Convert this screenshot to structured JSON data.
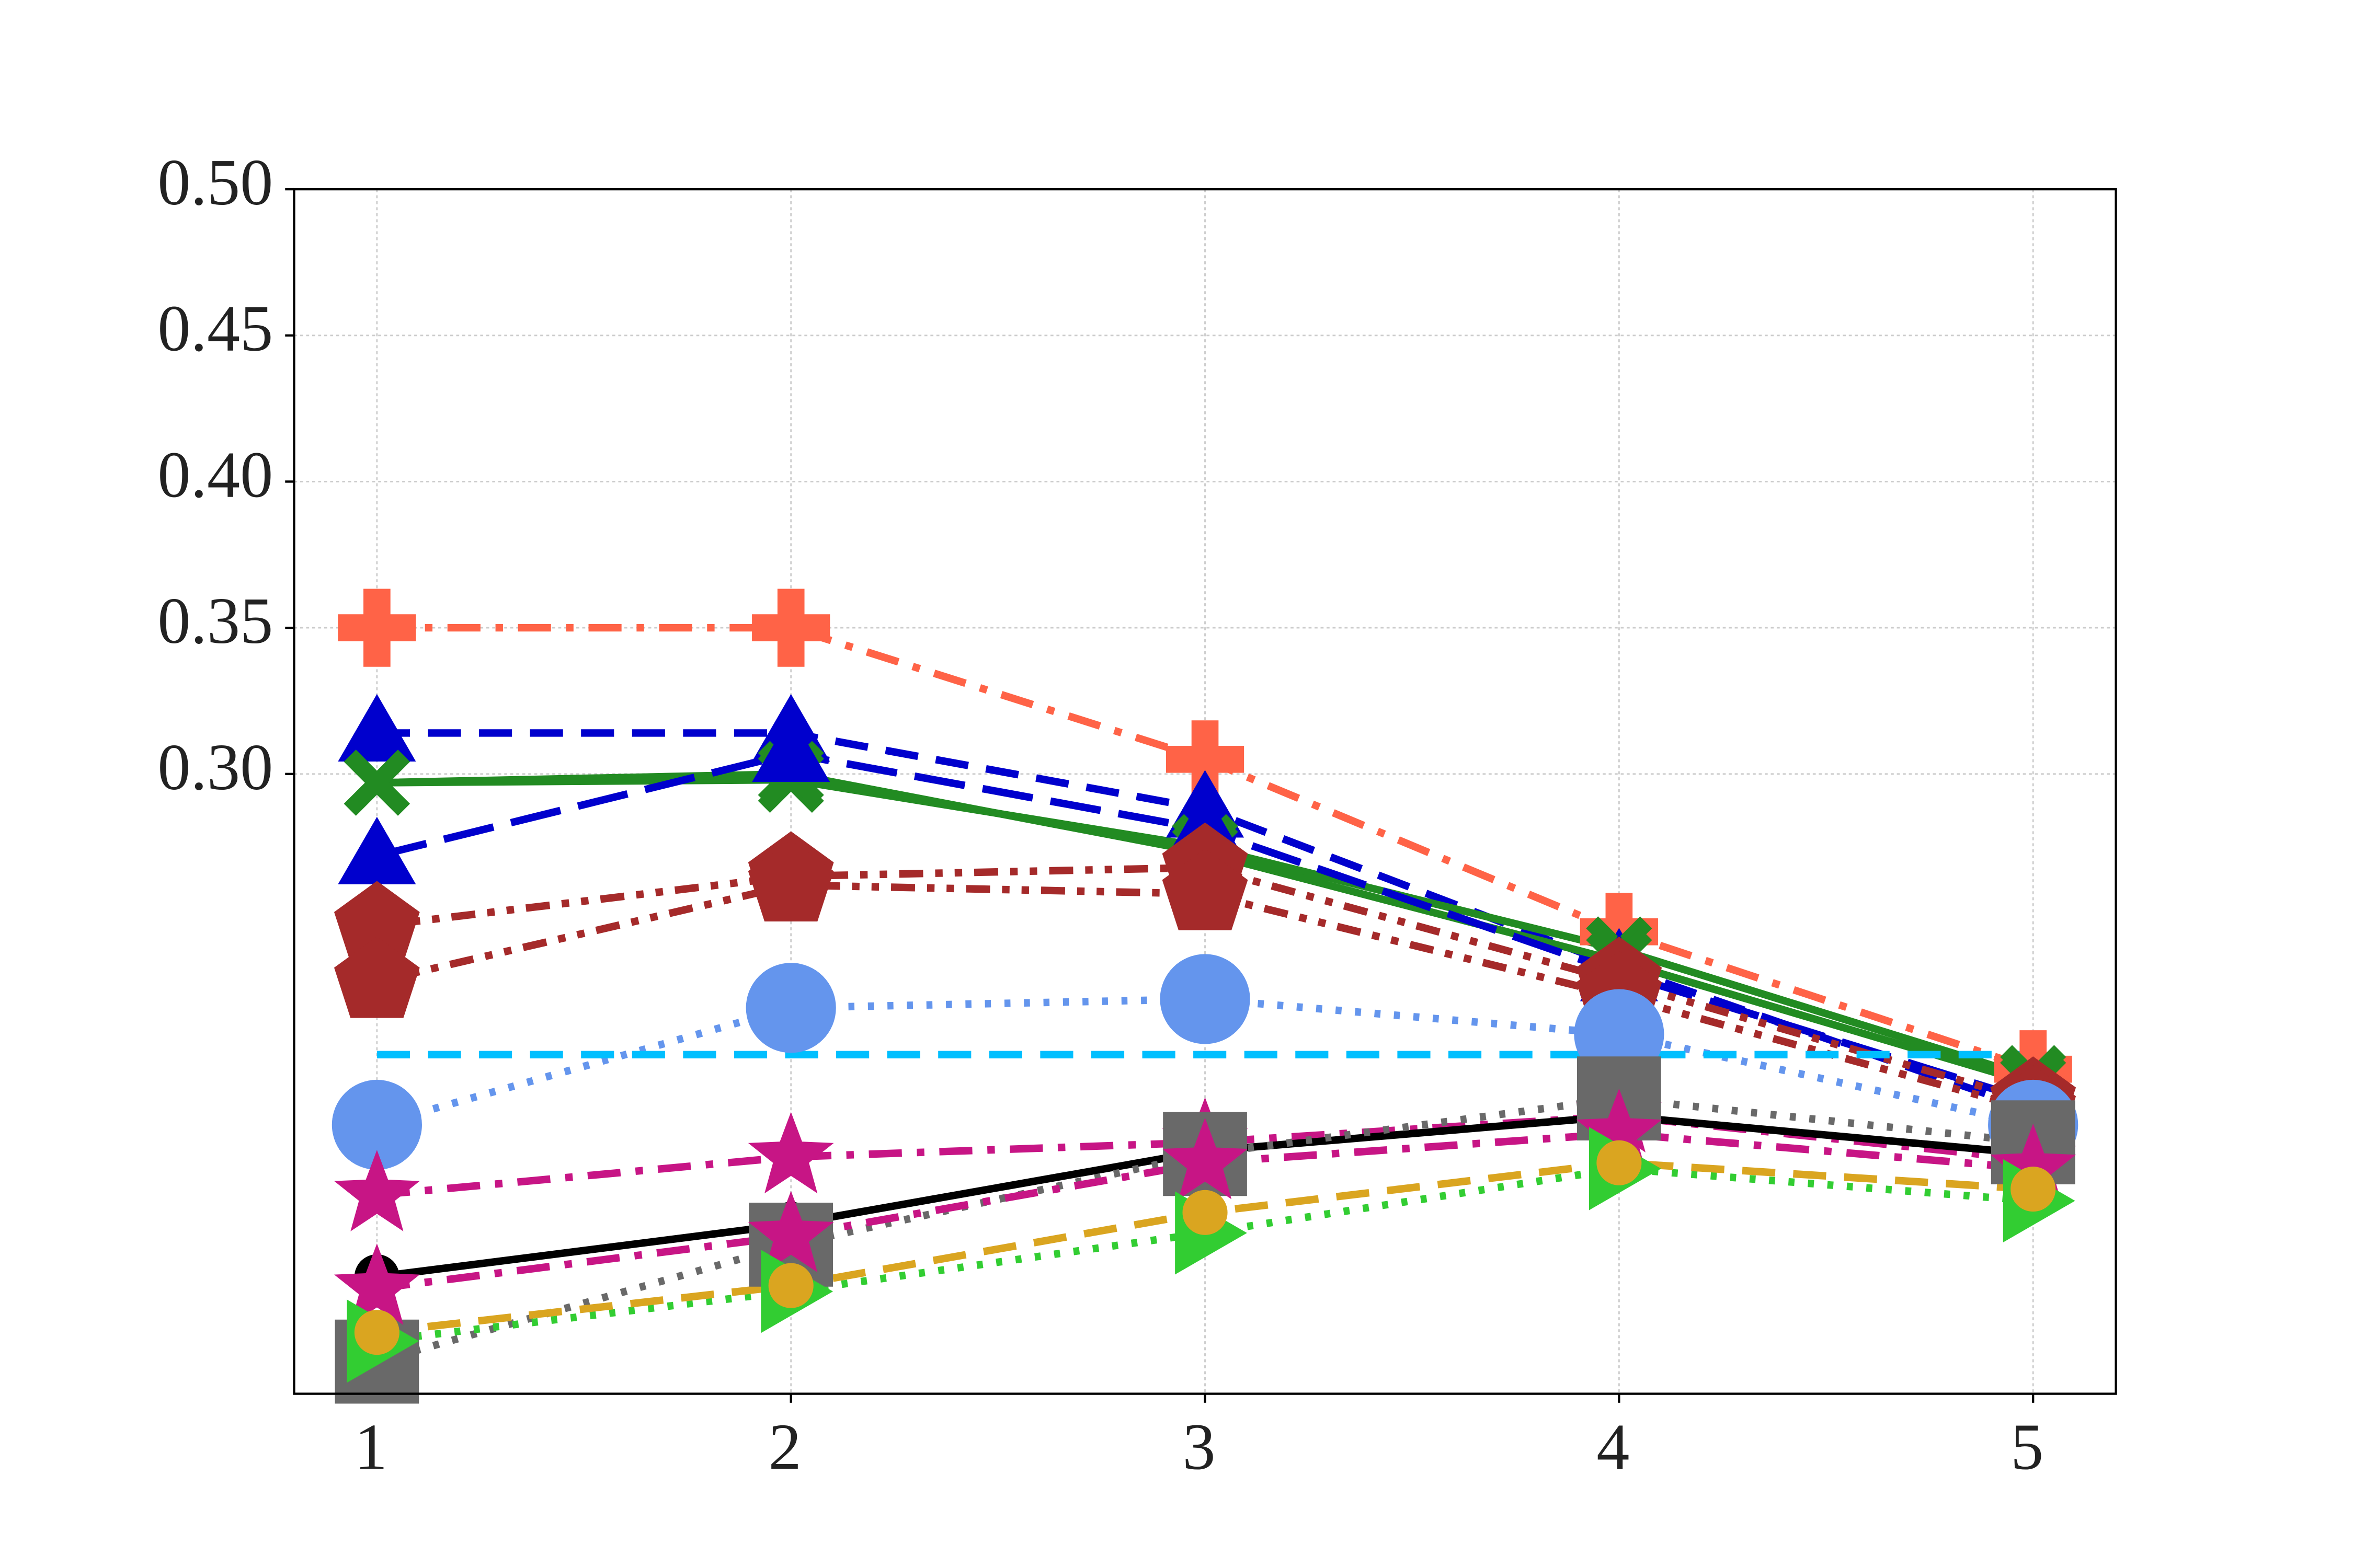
{
  "chart_data": {
    "type": "line",
    "x": [
      1,
      2,
      3,
      4,
      5
    ],
    "xlim": [
      0.8,
      5.2
    ],
    "xticks": [
      1,
      2,
      3,
      4,
      5
    ],
    "ylim": [
      0.088,
      0.5
    ],
    "yticks": [
      {
        "value": 0.3,
        "label": "0.30"
      },
      0.35,
      {
        "value": 0.4,
        "label": "0.40"
      },
      0.45,
      {
        "value": 0.5,
        "label": "0.50"
      }
    ],
    "grid": true,
    "series": [
      {
        "color": "#ff6347",
        "dash": "dashdot",
        "marker": "plus",
        "values": [
          0.35,
          0.35,
          0.305,
          0.246,
          0.199
        ]
      },
      {
        "color": "#0000cd",
        "dash": "dashed",
        "marker": "triangle",
        "values": [
          0.314,
          0.314,
          0.288,
          0.234,
          0.185
        ]
      },
      {
        "color": "#228b22",
        "dash": "solid",
        "marker": "x",
        "values": [
          0.297,
          0.298,
          0.275,
          0.24,
          0.196
        ]
      },
      {
        "color": "#228b22",
        "dash": "solid",
        "marker": "x",
        "values": [
          0.297,
          0.3,
          0.273,
          0.236,
          0.194
        ]
      },
      {
        "color": "#0000cd",
        "dash": "longdash",
        "marker": "triangle",
        "values": [
          0.272,
          0.307,
          0.281,
          0.232,
          0.188
        ]
      },
      {
        "color": "#a52a2a",
        "dash": "dashdotdot",
        "marker": "pentagon",
        "values": [
          0.248,
          0.265,
          0.268,
          0.229,
          0.188
        ]
      },
      {
        "color": "#a52a2a",
        "dash": "dashdotdot",
        "marker": "pentagon",
        "values": [
          0.229,
          0.262,
          0.259,
          0.224,
          0.185
        ]
      },
      {
        "color": "#6495ed",
        "dash": "dotted",
        "marker": "circle",
        "values": [
          0.18,
          0.22,
          0.223,
          0.211,
          0.18
        ]
      },
      {
        "color": "#00bfff",
        "dash": "dashed",
        "marker": "none",
        "values": [
          0.204,
          0.204,
          0.204,
          0.204,
          0.204
        ]
      },
      {
        "color": "#c71585",
        "dash": "dashdot",
        "marker": "star",
        "values": [
          0.156,
          0.169,
          0.174,
          0.183,
          0.168
        ]
      },
      {
        "color": "#000000",
        "dash": "solid",
        "marker": "circle-small",
        "values": [
          0.128,
          0.146,
          0.171,
          0.183,
          0.17
        ]
      },
      {
        "color": "#696969",
        "dash": "dotted",
        "marker": "square",
        "values": [
          0.099,
          0.139,
          0.17,
          0.189,
          0.174
        ]
      },
      {
        "color": "#c71585",
        "dash": "dashdot",
        "marker": "star",
        "values": [
          0.124,
          0.142,
          0.167,
          0.177,
          0.165
        ]
      },
      {
        "color": "#32cd32",
        "dash": "dotted",
        "marker": "triangle-right",
        "values": [
          0.106,
          0.123,
          0.143,
          0.165,
          0.154
        ]
      },
      {
        "color": "#daa520",
        "dash": "dashed",
        "marker": "circle-small",
        "values": [
          0.109,
          0.125,
          0.15,
          0.167,
          0.158
        ]
      }
    ]
  }
}
